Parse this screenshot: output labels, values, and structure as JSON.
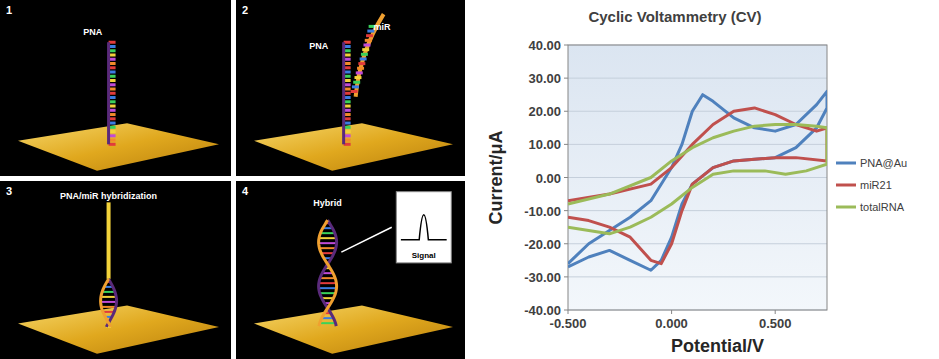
{
  "chart_data": {
    "type": "line",
    "title": "Cyclic Voltammetry (CV)",
    "x_label": "Potential/V",
    "y_label": "Current/μA",
    "xlim": [
      -0.5,
      0.75
    ],
    "ylim": [
      -40,
      40
    ],
    "xticks": [
      {
        "value": -0.5,
        "label": "-0.500"
      },
      {
        "value": 0,
        "label": "0.000"
      },
      {
        "value": 0.5,
        "label": "0.500"
      }
    ],
    "yticks": [
      {
        "value": 40,
        "label": "40.00"
      },
      {
        "value": 30,
        "label": "30.00"
      },
      {
        "value": 20,
        "label": "20.00"
      },
      {
        "value": 10,
        "label": "10.00"
      },
      {
        "value": 0,
        "label": "0.00"
      },
      {
        "value": -10,
        "label": "-10.00"
      },
      {
        "value": -20,
        "label": "-20.00"
      },
      {
        "value": -30,
        "label": "-30.00"
      },
      {
        "value": -40,
        "label": "-40.00"
      }
    ],
    "grid": true,
    "legend": "right",
    "series": [
      {
        "name": "PNA@Au",
        "color": "#4f81bd",
        "x": [
          -0.5,
          -0.4,
          -0.3,
          -0.2,
          -0.1,
          0,
          0.05,
          0.1,
          0.15,
          0.2,
          0.3,
          0.4,
          0.5,
          0.6,
          0.7,
          0.75,
          0.75,
          0.7,
          0.6,
          0.5,
          0.4,
          0.3,
          0.2,
          0.1,
          0.05,
          0,
          -0.05,
          -0.1,
          -0.2,
          -0.3,
          -0.4,
          -0.5
        ],
        "values": [
          -26,
          -20,
          -16,
          -12,
          -7,
          3,
          10,
          20,
          25,
          23,
          18,
          15,
          14,
          16,
          22,
          26,
          21,
          15,
          9,
          6,
          5.5,
          5,
          3,
          -2,
          -8,
          -18,
          -25,
          -28,
          -25,
          -22,
          -24,
          -27
        ]
      },
      {
        "name": "miR21",
        "color": "#c0504d",
        "x": [
          -0.5,
          -0.3,
          -0.1,
          0,
          0.1,
          0.2,
          0.3,
          0.4,
          0.5,
          0.6,
          0.7,
          0.75,
          0.75,
          0.6,
          0.5,
          0.4,
          0.3,
          0.2,
          0.1,
          0.05,
          0,
          -0.05,
          -0.1,
          -0.2,
          -0.3,
          -0.4,
          -0.5
        ],
        "values": [
          -7,
          -5,
          -2,
          3,
          10,
          16,
          20,
          21,
          19,
          16,
          14,
          15,
          5,
          6,
          6,
          5.5,
          5,
          3,
          -2,
          -10,
          -20,
          -26,
          -25,
          -18,
          -15,
          -13,
          -12
        ]
      },
      {
        "name": "totalRNA",
        "color": "#9bbb59",
        "x": [
          -0.5,
          -0.3,
          -0.1,
          0,
          0.1,
          0.2,
          0.3,
          0.4,
          0.5,
          0.6,
          0.7,
          0.75,
          0.75,
          0.65,
          0.55,
          0.45,
          0.3,
          0.2,
          0.1,
          0,
          -0.1,
          -0.2,
          -0.3,
          -0.4,
          -0.5
        ],
        "values": [
          -8,
          -5,
          0,
          5,
          9,
          12,
          14,
          15.5,
          16,
          16,
          15.5,
          15,
          4,
          2,
          1,
          2,
          2,
          1,
          -3,
          -8,
          -12,
          -15,
          -17,
          -16,
          -15
        ]
      }
    ]
  },
  "panels": [
    {
      "number": 1,
      "labels": [
        "PNA"
      ]
    },
    {
      "number": 2,
      "labels": [
        "PNA",
        "miR"
      ]
    },
    {
      "number": 3,
      "labels": [
        "PNA/miR hybridization"
      ]
    },
    {
      "number": 4,
      "labels": [
        "Hybrid",
        "Signal"
      ]
    }
  ]
}
